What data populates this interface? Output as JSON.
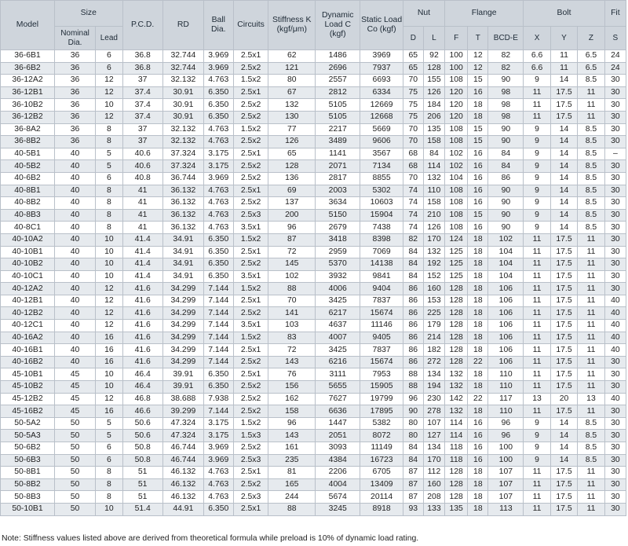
{
  "headers": {
    "model": "Model",
    "size": "Size",
    "nominal_dia": "Nominal Dia.",
    "lead": "Lead",
    "pcd": "P.C.D.",
    "rd": "RD",
    "ball_dia": "Ball Dia.",
    "circuits": "Circuits",
    "stiffness": "Stiffness K (kgf/μm)",
    "dynamic": "Dynamic Load C (kgf)",
    "static": "Static Load Co (kgf)",
    "nut": "Nut",
    "nut_d": "D",
    "nut_l": "L",
    "flange": "Flange",
    "flange_f": "F",
    "flange_t": "T",
    "flange_bcd": "BCD-E",
    "bolt": "Bolt",
    "bolt_x": "X",
    "bolt_y": "Y",
    "bolt_z": "Z",
    "fit": "Fit",
    "fit_s": "S"
  },
  "rows": [
    [
      "36-6B1",
      "36",
      "6",
      "36.8",
      "32.744",
      "3.969",
      "2.5x1",
      "62",
      "1486",
      "3969",
      "65",
      "92",
      "100",
      "12",
      "82",
      "6.6",
      "11",
      "6.5",
      "24"
    ],
    [
      "36-6B2",
      "36",
      "6",
      "36.8",
      "32.744",
      "3.969",
      "2.5x2",
      "121",
      "2696",
      "7937",
      "65",
      "128",
      "100",
      "12",
      "82",
      "6.6",
      "11",
      "6.5",
      "24"
    ],
    [
      "36-12A2",
      "36",
      "12",
      "37",
      "32.132",
      "4.763",
      "1.5x2",
      "80",
      "2557",
      "6693",
      "70",
      "155",
      "108",
      "15",
      "90",
      "9",
      "14",
      "8.5",
      "30"
    ],
    [
      "36-12B1",
      "36",
      "12",
      "37.4",
      "30.91",
      "6.350",
      "2.5x1",
      "67",
      "2812",
      "6334",
      "75",
      "126",
      "120",
      "16",
      "98",
      "11",
      "17.5",
      "11",
      "30"
    ],
    [
      "36-10B2",
      "36",
      "10",
      "37.4",
      "30.91",
      "6.350",
      "2.5x2",
      "132",
      "5105",
      "12669",
      "75",
      "184",
      "120",
      "18",
      "98",
      "11",
      "17.5",
      "11",
      "30"
    ],
    [
      "36-12B2",
      "36",
      "12",
      "37.4",
      "30.91",
      "6.350",
      "2.5x2",
      "130",
      "5105",
      "12668",
      "75",
      "206",
      "120",
      "18",
      "98",
      "11",
      "17.5",
      "11",
      "30"
    ],
    [
      "36-8A2",
      "36",
      "8",
      "37",
      "32.132",
      "4.763",
      "1.5x2",
      "77",
      "2217",
      "5669",
      "70",
      "135",
      "108",
      "15",
      "90",
      "9",
      "14",
      "8.5",
      "30"
    ],
    [
      "36-8B2",
      "36",
      "8",
      "37",
      "32.132",
      "4.763",
      "2.5x2",
      "126",
      "3489",
      "9606",
      "70",
      "158",
      "108",
      "15",
      "90",
      "9",
      "14",
      "8.5",
      "30"
    ],
    [
      "40-5B1",
      "40",
      "5",
      "40.6",
      "37.324",
      "3.175",
      "2.5x1",
      "65",
      "1141",
      "3567",
      "68",
      "84",
      "102",
      "16",
      "84",
      "9",
      "14",
      "8.5",
      "–"
    ],
    [
      "40-5B2",
      "40",
      "5",
      "40.6",
      "37.324",
      "3.175",
      "2.5x2",
      "128",
      "2071",
      "7134",
      "68",
      "114",
      "102",
      "16",
      "84",
      "9",
      "14",
      "8.5",
      "30"
    ],
    [
      "40-6B2",
      "40",
      "6",
      "40.8",
      "36.744",
      "3.969",
      "2.5x2",
      "136",
      "2817",
      "8855",
      "70",
      "132",
      "104",
      "16",
      "86",
      "9",
      "14",
      "8.5",
      "30"
    ],
    [
      "40-8B1",
      "40",
      "8",
      "41",
      "36.132",
      "4.763",
      "2.5x1",
      "69",
      "2003",
      "5302",
      "74",
      "110",
      "108",
      "16",
      "90",
      "9",
      "14",
      "8.5",
      "30"
    ],
    [
      "40-8B2",
      "40",
      "8",
      "41",
      "36.132",
      "4.763",
      "2.5x2",
      "137",
      "3634",
      "10603",
      "74",
      "158",
      "108",
      "16",
      "90",
      "9",
      "14",
      "8.5",
      "30"
    ],
    [
      "40-8B3",
      "40",
      "8",
      "41",
      "36.132",
      "4.763",
      "2.5x3",
      "200",
      "5150",
      "15904",
      "74",
      "210",
      "108",
      "15",
      "90",
      "9",
      "14",
      "8.5",
      "30"
    ],
    [
      "40-8C1",
      "40",
      "8",
      "41",
      "36.132",
      "4.763",
      "3.5x1",
      "96",
      "2679",
      "7438",
      "74",
      "126",
      "108",
      "16",
      "90",
      "9",
      "14",
      "8.5",
      "30"
    ],
    [
      "40-10A2",
      "40",
      "10",
      "41.4",
      "34.91",
      "6.350",
      "1.5x2",
      "87",
      "3418",
      "8398",
      "82",
      "170",
      "124",
      "18",
      "102",
      "11",
      "17.5",
      "11",
      "30"
    ],
    [
      "40-10B1",
      "40",
      "10",
      "41.4",
      "34.91",
      "6.350",
      "2.5x1",
      "72",
      "2959",
      "7069",
      "84",
      "132",
      "125",
      "18",
      "104",
      "11",
      "17.5",
      "11",
      "30"
    ],
    [
      "40-10B2",
      "40",
      "10",
      "41.4",
      "34.91",
      "6.350",
      "2.5x2",
      "145",
      "5370",
      "14138",
      "84",
      "192",
      "125",
      "18",
      "104",
      "11",
      "17.5",
      "11",
      "30"
    ],
    [
      "40-10C1",
      "40",
      "10",
      "41.4",
      "34.91",
      "6.350",
      "3.5x1",
      "102",
      "3932",
      "9841",
      "84",
      "152",
      "125",
      "18",
      "104",
      "11",
      "17.5",
      "11",
      "30"
    ],
    [
      "40-12A2",
      "40",
      "12",
      "41.6",
      "34.299",
      "7.144",
      "1.5x2",
      "88",
      "4006",
      "9404",
      "86",
      "160",
      "128",
      "18",
      "106",
      "11",
      "17.5",
      "11",
      "30"
    ],
    [
      "40-12B1",
      "40",
      "12",
      "41.6",
      "34.299",
      "7.144",
      "2.5x1",
      "70",
      "3425",
      "7837",
      "86",
      "153",
      "128",
      "18",
      "106",
      "11",
      "17.5",
      "11",
      "40"
    ],
    [
      "40-12B2",
      "40",
      "12",
      "41.6",
      "34.299",
      "7.144",
      "2.5x2",
      "141",
      "6217",
      "15674",
      "86",
      "225",
      "128",
      "18",
      "106",
      "11",
      "17.5",
      "11",
      "40"
    ],
    [
      "40-12C1",
      "40",
      "12",
      "41.6",
      "34.299",
      "7.144",
      "3.5x1",
      "103",
      "4637",
      "11146",
      "86",
      "179",
      "128",
      "18",
      "106",
      "11",
      "17.5",
      "11",
      "40"
    ],
    [
      "40-16A2",
      "40",
      "16",
      "41.6",
      "34.299",
      "7.144",
      "1.5x2",
      "83",
      "4007",
      "9405",
      "86",
      "214",
      "128",
      "18",
      "106",
      "11",
      "17.5",
      "11",
      "40"
    ],
    [
      "40-16B1",
      "40",
      "16",
      "41.6",
      "34.299",
      "7.144",
      "2.5x1",
      "72",
      "3425",
      "7837",
      "86",
      "182",
      "128",
      "18",
      "106",
      "11",
      "17.5",
      "11",
      "40"
    ],
    [
      "40-16B2",
      "40",
      "16",
      "41.6",
      "34.299",
      "7.144",
      "2.5x2",
      "143",
      "6216",
      "15674",
      "86",
      "272",
      "128",
      "22",
      "106",
      "11",
      "17.5",
      "11",
      "30"
    ],
    [
      "45-10B1",
      "45",
      "10",
      "46.4",
      "39.91",
      "6.350",
      "2.5x1",
      "76",
      "3111",
      "7953",
      "88",
      "134",
      "132",
      "18",
      "110",
      "11",
      "17.5",
      "11",
      "30"
    ],
    [
      "45-10B2",
      "45",
      "10",
      "46.4",
      "39.91",
      "6.350",
      "2.5x2",
      "156",
      "5655",
      "15905",
      "88",
      "194",
      "132",
      "18",
      "110",
      "11",
      "17.5",
      "11",
      "30"
    ],
    [
      "45-12B2",
      "45",
      "12",
      "46.8",
      "38.688",
      "7.938",
      "2.5x2",
      "162",
      "7627",
      "19799",
      "96",
      "230",
      "142",
      "22",
      "117",
      "13",
      "20",
      "13",
      "40"
    ],
    [
      "45-16B2",
      "45",
      "16",
      "46.6",
      "39.299",
      "7.144",
      "2.5x2",
      "158",
      "6636",
      "17895",
      "90",
      "278",
      "132",
      "18",
      "110",
      "11",
      "17.5",
      "11",
      "30"
    ],
    [
      "50-5A2",
      "50",
      "5",
      "50.6",
      "47.324",
      "3.175",
      "1.5x2",
      "96",
      "1447",
      "5382",
      "80",
      "107",
      "114",
      "16",
      "96",
      "9",
      "14",
      "8.5",
      "30"
    ],
    [
      "50-5A3",
      "50",
      "5",
      "50.6",
      "47.324",
      "3.175",
      "1.5x3",
      "143",
      "2051",
      "8072",
      "80",
      "127",
      "114",
      "16",
      "96",
      "9",
      "14",
      "8.5",
      "30"
    ],
    [
      "50-6B2",
      "50",
      "6",
      "50.8",
      "46.744",
      "3.969",
      "2.5x2",
      "161",
      "3093",
      "11149",
      "84",
      "134",
      "118",
      "16",
      "100",
      "9",
      "14",
      "8.5",
      "30"
    ],
    [
      "50-6B3",
      "50",
      "6",
      "50.8",
      "46.744",
      "3.969",
      "2.5x3",
      "235",
      "4384",
      "16723",
      "84",
      "170",
      "118",
      "16",
      "100",
      "9",
      "14",
      "8.5",
      "30"
    ],
    [
      "50-8B1",
      "50",
      "8",
      "51",
      "46.132",
      "4.763",
      "2.5x1",
      "81",
      "2206",
      "6705",
      "87",
      "112",
      "128",
      "18",
      "107",
      "11",
      "17.5",
      "11",
      "30"
    ],
    [
      "50-8B2",
      "50",
      "8",
      "51",
      "46.132",
      "4.763",
      "2.5x2",
      "165",
      "4004",
      "13409",
      "87",
      "160",
      "128",
      "18",
      "107",
      "11",
      "17.5",
      "11",
      "30"
    ],
    [
      "50-8B3",
      "50",
      "8",
      "51",
      "46.132",
      "4.763",
      "2.5x3",
      "244",
      "5674",
      "20114",
      "87",
      "208",
      "128",
      "18",
      "107",
      "11",
      "17.5",
      "11",
      "30"
    ],
    [
      "50-10B1",
      "50",
      "10",
      "51.4",
      "44.91",
      "6.350",
      "2.5x1",
      "88",
      "3245",
      "8918",
      "93",
      "133",
      "135",
      "18",
      "113",
      "11",
      "17.5",
      "11",
      "30"
    ]
  ],
  "note": "Note: Stiffness values listed above are derived from theoretical formula while preload is 10% of dynamic load rating."
}
